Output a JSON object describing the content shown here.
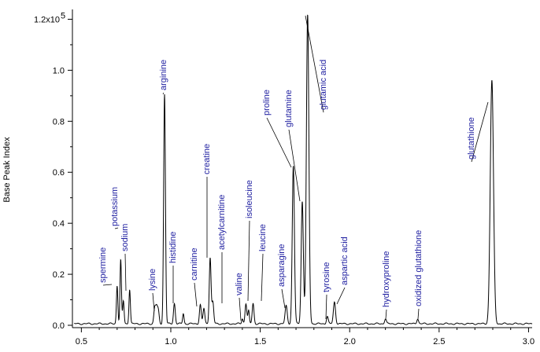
{
  "chart_data": {
    "type": "line",
    "title": "",
    "xlabel": "",
    "ylabel": "Base Peak Index",
    "xlim": [
      0.45,
      3.02
    ],
    "ylim": [
      0.0,
      1.22
    ],
    "grid": false,
    "x_ticks": [
      0.5,
      1.0,
      1.5,
      2.0,
      2.5,
      3.0
    ],
    "x_tick_labels": [
      "0.5",
      "1.0",
      "1.5",
      "2.0",
      "2.5",
      "3.0"
    ],
    "y_ticks": [
      0.0,
      0.2,
      0.4,
      0.6,
      0.8,
      1.0,
      1.2
    ],
    "y_tick_labels": [
      "0.0",
      "0.2",
      "0.4",
      "0.6",
      "0.8",
      "1.0",
      "1.2x10"
    ],
    "y_top_exponent": "5",
    "baseline": 0.006,
    "unlabeled_peaks": [
      {
        "x": 0.7,
        "y": 0.15,
        "w": 0.004
      },
      {
        "x": 0.91,
        "y": 0.06,
        "w": 0.005
      },
      {
        "x": 0.93,
        "y": 0.05,
        "w": 0.005
      },
      {
        "x": 1.07,
        "y": 0.04,
        "w": 0.004
      },
      {
        "x": 1.185,
        "y": 0.06,
        "w": 0.005
      },
      {
        "x": 1.4,
        "y": 0.02,
        "w": 0.004
      }
    ],
    "peaks": [
      {
        "label": "spermine",
        "x": 0.72,
        "y": 0.25,
        "w": 0.004
      },
      {
        "label": "potassium",
        "x": 0.735,
        "y": 0.09,
        "w": 0.004
      },
      {
        "label": "sodium",
        "x": 0.77,
        "y": 0.135,
        "w": 0.004
      },
      {
        "label": "lysine",
        "x": 0.92,
        "y": 0.06,
        "w": 0.005
      },
      {
        "label": "arginine",
        "x": 0.965,
        "y": 0.9,
        "w": 0.005
      },
      {
        "label": "histidine",
        "x": 1.02,
        "y": 0.08,
        "w": 0.005
      },
      {
        "label": "carnitine",
        "x": 1.165,
        "y": 0.075,
        "w": 0.005
      },
      {
        "label": "creatine",
        "x": 1.22,
        "y": 0.26,
        "w": 0.005
      },
      {
        "label": "acetylcarnitine",
        "x": 1.235,
        "y": 0.085,
        "w": 0.005
      },
      {
        "label": "valine",
        "x": 1.42,
        "y": 0.08,
        "w": 0.005
      },
      {
        "label": "isoleucine",
        "x": 1.435,
        "y": 0.05,
        "w": 0.004
      },
      {
        "label": "leucine",
        "x": 1.46,
        "y": 0.08,
        "w": 0.005
      },
      {
        "label": "asparagine",
        "x": 1.645,
        "y": 0.07,
        "w": 0.006
      },
      {
        "label": "proline",
        "x": 1.685,
        "y": 0.62,
        "w": 0.006
      },
      {
        "label": "glutamine",
        "x": 1.735,
        "y": 0.48,
        "w": 0.006
      },
      {
        "label": "glutamic acid",
        "x": 1.765,
        "y": 1.21,
        "w": 0.007
      },
      {
        "label": "tyrosine",
        "x": 1.875,
        "y": 0.03,
        "w": 0.005
      },
      {
        "label": "aspartic acid",
        "x": 1.915,
        "y": 0.085,
        "w": 0.006
      },
      {
        "label": "hydroxyproline",
        "x": 2.2,
        "y": 0.02,
        "w": 0.005
      },
      {
        "label": "oxidized glutathione",
        "x": 2.38,
        "y": 0.02,
        "w": 0.005
      },
      {
        "label": "glutathione",
        "x": 2.795,
        "y": 0.955,
        "w": 0.009
      }
    ]
  }
}
